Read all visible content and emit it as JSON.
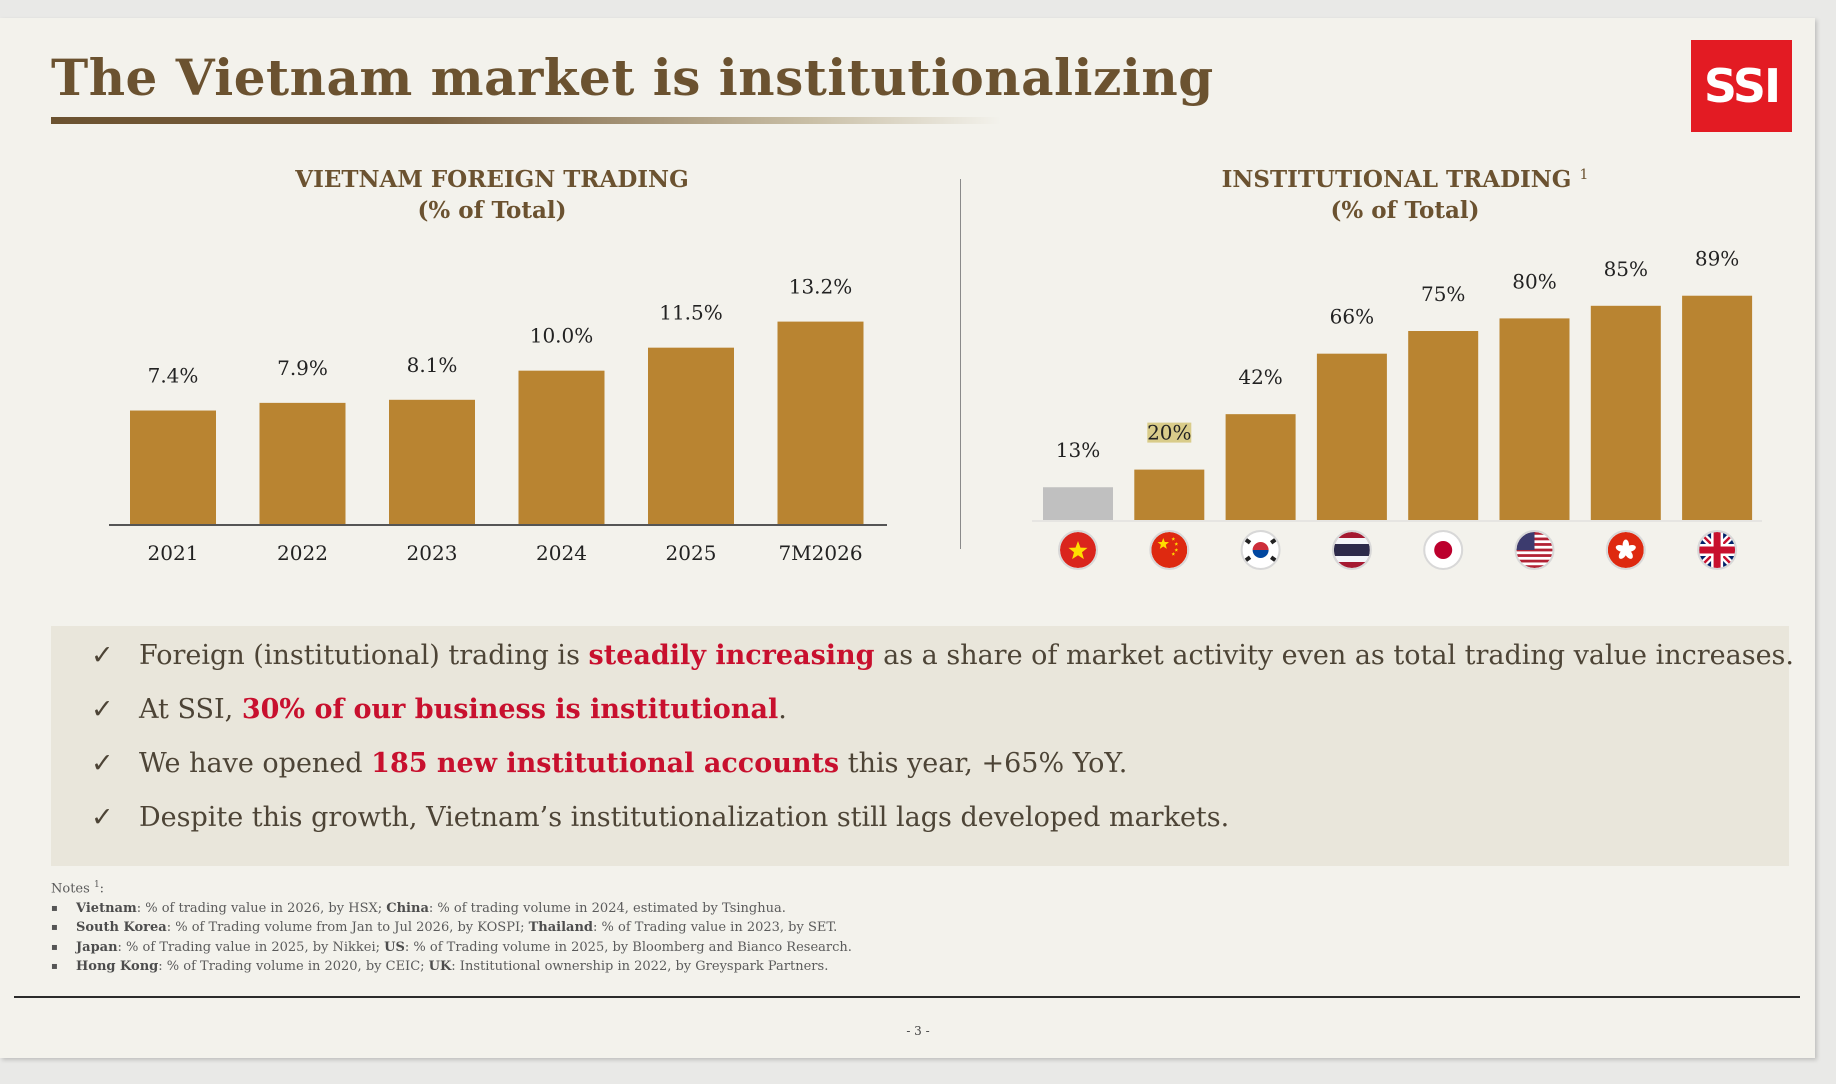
{
  "title": "The Vietnam market is institutionalizing",
  "logo_text": "SSI",
  "colors": {
    "bar": "#b98431",
    "bar_vietnam": "#c0c0c0",
    "title": "#6b5230",
    "highlight": "#c8102e",
    "logo_bg": "#e31b23"
  },
  "chart_data": [
    {
      "type": "bar",
      "title_line1": "VIETNAM FOREIGN TRADING",
      "title_line2": "(% of Total)",
      "categories": [
        "2021",
        "2022",
        "2023",
        "2024",
        "2025",
        "7M2026"
      ],
      "values": [
        7.4,
        7.9,
        8.1,
        10.0,
        11.5,
        13.2
      ],
      "data_labels": [
        "7.4%",
        "7.9%",
        "8.1%",
        "10.0%",
        "11.5%",
        "13.2%"
      ],
      "ylim": [
        0,
        15
      ],
      "grid": false
    },
    {
      "type": "bar",
      "title_line1": "INSTITUTIONAL TRADING",
      "title_sup": "1",
      "title_line2": "(% of Total)",
      "categories": [
        "Vietnam",
        "China",
        "South Korea",
        "Thailand",
        "Japan",
        "US",
        "Hong Kong",
        "UK"
      ],
      "category_icons": [
        "vietnam-flag-icon",
        "china-flag-icon",
        "south-korea-flag-icon",
        "thailand-flag-icon",
        "japan-flag-icon",
        "us-flag-icon",
        "hong-kong-flag-icon",
        "uk-flag-icon"
      ],
      "values": [
        13,
        20,
        42,
        66,
        75,
        80,
        85,
        89
      ],
      "data_labels": [
        "13%",
        "20%",
        "42%",
        "66%",
        "75%",
        "80%",
        "85%",
        "89%"
      ],
      "highlighted_bar": "Vietnam",
      "ylim": [
        0,
        100
      ],
      "grid": false
    }
  ],
  "bullets": [
    {
      "pre": "Foreign (institutional) trading is ",
      "hl": "steadily increasing",
      "post": " as a share of market activity even as total trading value increases."
    },
    {
      "pre": "At SSI, ",
      "hl": "30% of our business is institutional",
      "post": "."
    },
    {
      "pre": "We have opened ",
      "hl": "185 new institutional accounts",
      "post": " this year, +65% YoY."
    },
    {
      "pre": "Despite this growth, Vietnam’s institutionalization still lags developed markets.",
      "hl": "",
      "post": ""
    }
  ],
  "check_glyph": "✓",
  "notes": {
    "heading": "Notes",
    "heading_sup": "1",
    "heading_suffix": ":",
    "items": [
      {
        "k1": "Vietnam",
        "t1": ": % of trading value in 2026, by HSX; ",
        "k2": "China",
        "t2": ": % of trading volume in 2024, estimated by Tsinghua."
      },
      {
        "k1": "South Korea",
        "t1": ": % of Trading volume from Jan to Jul 2026, by KOSPI; ",
        "k2": "Thailand",
        "t2": ": % of Trading value in 2023, by SET."
      },
      {
        "k1": "Japan",
        "t1": ": % of Trading value in 2025, by Nikkei; ",
        "k2": "US",
        "t2": ": % of Trading volume in 2025, by Bloomberg and Bianco Research."
      },
      {
        "k1": "Hong Kong",
        "t1": ": % of Trading volume in 2020, by CEIC; ",
        "k2": "UK",
        "t2": ": Institutional ownership in 2022, by Greyspark Partners."
      }
    ]
  },
  "page_number": "- 3 -"
}
